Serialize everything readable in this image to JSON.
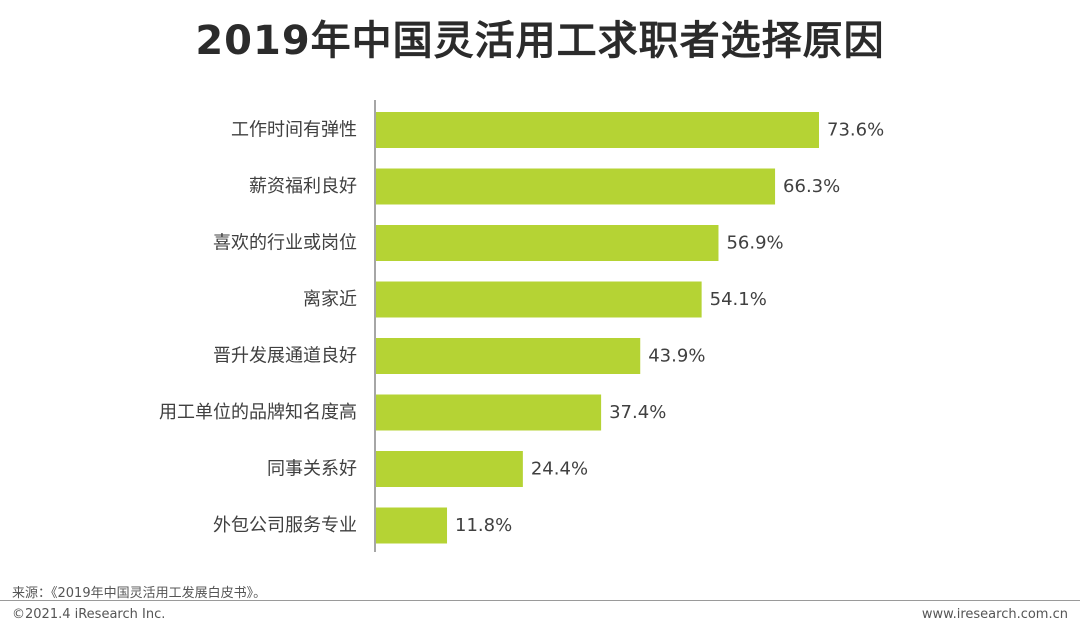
{
  "chart_data": {
    "type": "bar",
    "orientation": "horizontal",
    "title": "2019年中国灵活用工求职者选择原因",
    "categories": [
      "工作时间有弹性",
      "薪资福利良好",
      "喜欢的行业或岗位",
      "离家近",
      "晋升发展通道良好",
      "用工单位的品牌知名度高",
      "同事关系好",
      "外包公司服务专业"
    ],
    "values": [
      73.6,
      66.3,
      56.9,
      54.1,
      43.9,
      37.4,
      24.4,
      11.8
    ],
    "value_labels": [
      "73.6%",
      "66.3%",
      "56.9%",
      "54.1%",
      "43.9%",
      "37.4%",
      "24.4%",
      "11.8%"
    ],
    "xlim": [
      0,
      100
    ],
    "bar_color": "#b5d334",
    "grid": false,
    "legend": "none"
  },
  "footer": {
    "source": "来源：《2019年中国灵活用工发展白皮书》。",
    "copyright": "©2021.4 iResearch Inc.",
    "website": "www.iresearch.com.cn"
  }
}
